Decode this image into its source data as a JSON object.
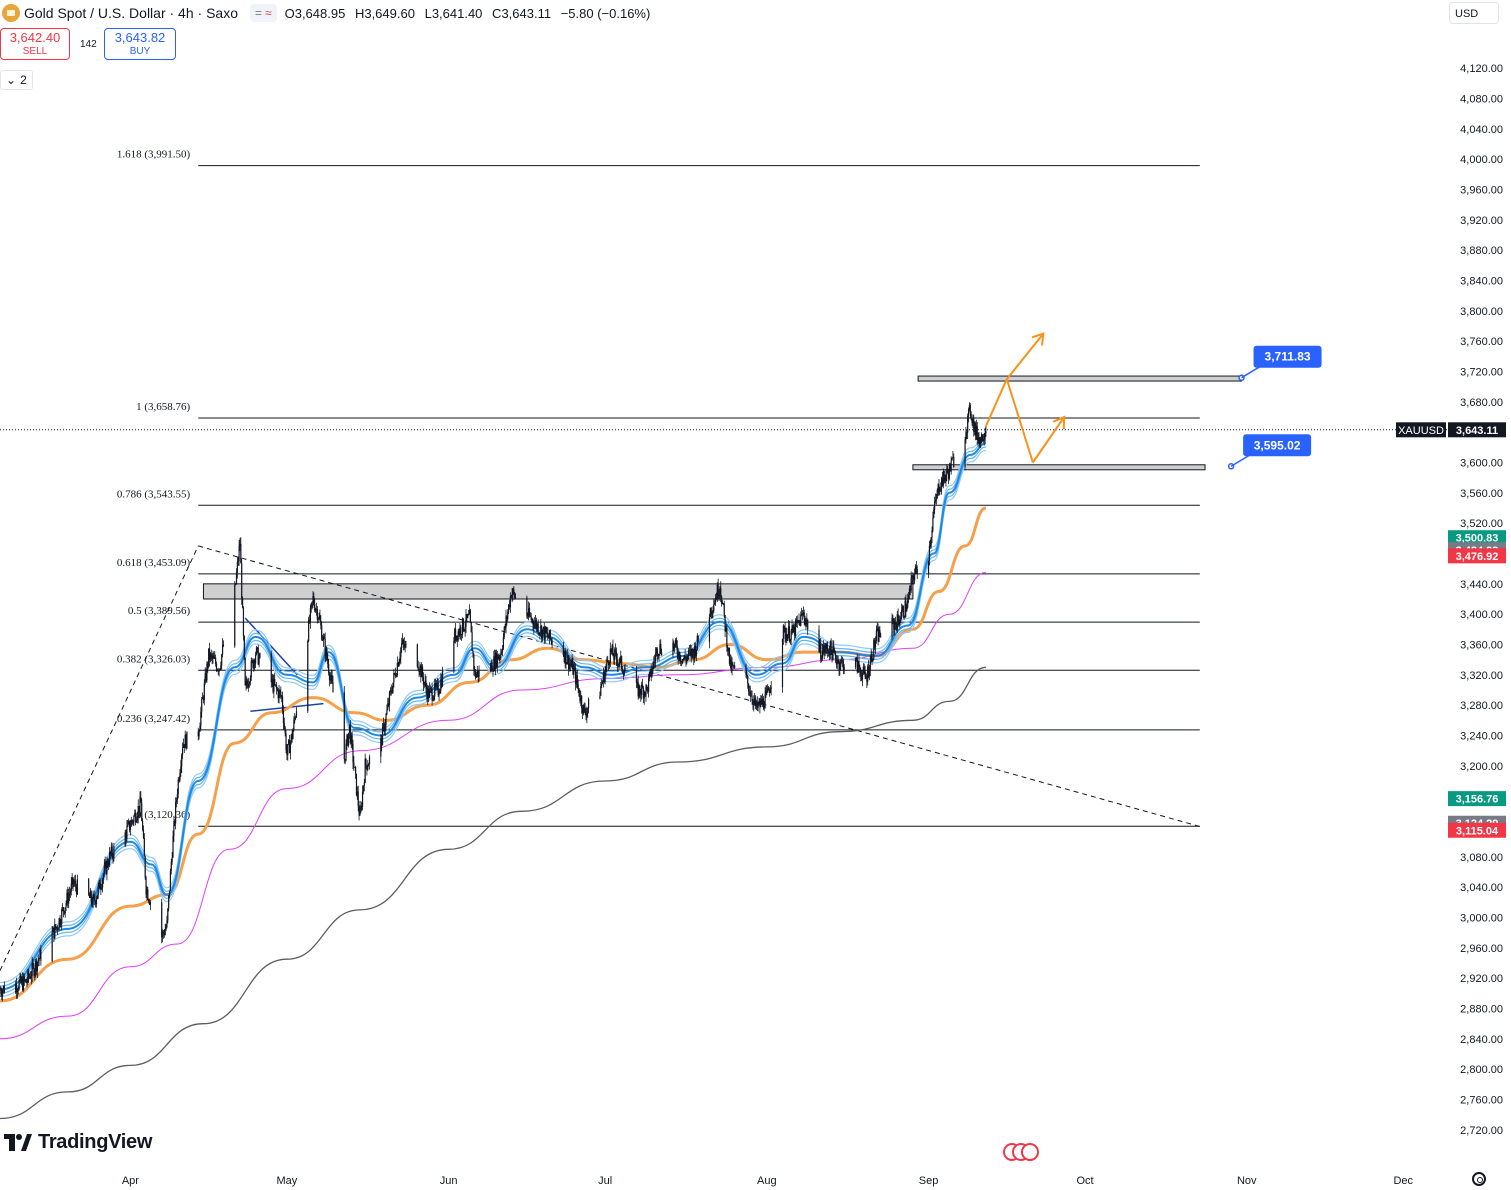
{
  "header": {
    "symbol": "Gold Spot / U.S. Dollar · 4h · Saxo",
    "flag_eq": "=",
    "flag_wave": "≈",
    "open_label": "O",
    "open": "3,648.95",
    "high_label": "H",
    "high": "3,649.60",
    "low_label": "L",
    "low": "3,641.40",
    "close_label": "C",
    "close": "3,643.11",
    "change": "−5.80 (−0.16%)"
  },
  "trade": {
    "sell_price": "3,642.40",
    "sell_label": "SELL",
    "spread": "142",
    "buy_price": "3,643.82",
    "buy_label": "BUY"
  },
  "indicators_toggle": {
    "chevron": "⌄",
    "count": "2"
  },
  "currency": "USD",
  "branding": "TradingView",
  "colors": {
    "up": "#089981",
    "down": "#f23645",
    "blue_label": "#2962ff",
    "orange": "#f7931a",
    "ema_fast": "#1e88e5",
    "ema_fast_light": "#90caf9",
    "ema_mid": "#f5a04a",
    "ema_slow": "#e040fb",
    "ema_200": "#5d5d5d"
  },
  "chart_data": {
    "type": "line",
    "description_fields": {
      "symbol": "XAUUSD",
      "last_price": 3643.11,
      "last_price_label": "3,643.11"
    },
    "ylim": [
      2700,
      4140
    ],
    "y_ticks": [
      2720,
      2760,
      2800,
      2840,
      2880,
      2920,
      2960,
      3000,
      3040,
      3080,
      3120,
      3160,
      3200,
      3240,
      3280,
      3320,
      3360,
      3400,
      3440,
      3480,
      3520,
      3560,
      3600,
      3640,
      3680,
      3720,
      3760,
      3800,
      3840,
      3880,
      3920,
      3960,
      4000,
      4040,
      4080,
      4120
    ],
    "y_tick_labels": [
      "2,720.00",
      "2,760.00",
      "2,800.00",
      "2,840.00",
      "2,880.00",
      "2,920.00",
      "2,960.00",
      "3,000.00",
      "3,040.00",
      "3,080.00",
      "3,120.00",
      "3,160.00",
      "3,200.00",
      "3,240.00",
      "3,280.00",
      "3,320.00",
      "3,360.00",
      "3,400.00",
      "3,440.00",
      "3,480.00",
      "3,520.00",
      "3,560.00",
      "3,600.00",
      "3,640.00",
      "3,680.00",
      "3,720.00",
      "3,760.00",
      "3,800.00",
      "3,840.00",
      "3,880.00",
      "3,920.00",
      "3,960.00",
      "4,000.00",
      "4,040.00",
      "4,080.00",
      "4,120.00"
    ],
    "x_axis_months": [
      "Apr",
      "May",
      "Jun",
      "Jul",
      "Aug",
      "Sep",
      "Oct",
      "Nov",
      "Dec"
    ],
    "x_axis_month_dates": [
      "2025-04-01",
      "2025-05-01",
      "2025-06-01",
      "2025-07-01",
      "2025-08-01",
      "2025-09-01",
      "2025-10-01",
      "2025-11-01",
      "2025-12-01"
    ],
    "x_range": [
      "2025-03-07",
      "2025-12-09"
    ],
    "price_path": [
      [
        "2025-03-07",
        2905
      ],
      [
        "2025-03-12",
        2915
      ],
      [
        "2025-03-18",
        2990
      ],
      [
        "2025-03-21",
        3045
      ],
      [
        "2025-03-25",
        3020
      ],
      [
        "2025-03-28",
        3080
      ],
      [
        "2025-03-31",
        3110
      ],
      [
        "2025-04-03",
        3150
      ],
      [
        "2025-04-04",
        3040
      ],
      [
        "2025-04-07",
        2975
      ],
      [
        "2025-04-08",
        2990
      ],
      [
        "2025-04-09",
        3090
      ],
      [
        "2025-04-10",
        3170
      ],
      [
        "2025-04-11",
        3230
      ],
      [
        "2025-04-14",
        3245
      ],
      [
        "2025-04-16",
        3345
      ],
      [
        "2025-04-18",
        3330
      ],
      [
        "2025-04-21",
        3430
      ],
      [
        "2025-04-22",
        3495
      ],
      [
        "2025-04-23",
        3300
      ],
      [
        "2025-04-25",
        3350
      ],
      [
        "2025-04-28",
        3310
      ],
      [
        "2025-04-30",
        3290
      ],
      [
        "2025-05-01",
        3215
      ],
      [
        "2025-05-02",
        3240
      ],
      [
        "2025-05-06",
        3420
      ],
      [
        "2025-05-07",
        3400
      ],
      [
        "2025-05-09",
        3330
      ],
      [
        "2025-05-12",
        3210
      ],
      [
        "2025-05-13",
        3250
      ],
      [
        "2025-05-15",
        3130
      ],
      [
        "2025-05-16",
        3200
      ],
      [
        "2025-05-19",
        3230
      ],
      [
        "2025-05-21",
        3300
      ],
      [
        "2025-05-23",
        3360
      ],
      [
        "2025-05-26",
        3340
      ],
      [
        "2025-05-28",
        3295
      ],
      [
        "2025-05-30",
        3300
      ],
      [
        "2025-06-02",
        3370
      ],
      [
        "2025-06-05",
        3395
      ],
      [
        "2025-06-06",
        3320
      ],
      [
        "2025-06-09",
        3330
      ],
      [
        "2025-06-11",
        3350
      ],
      [
        "2025-06-13",
        3430
      ],
      [
        "2025-06-16",
        3400
      ],
      [
        "2025-06-18",
        3385
      ],
      [
        "2025-06-20",
        3370
      ],
      [
        "2025-06-23",
        3350
      ],
      [
        "2025-06-25",
        3325
      ],
      [
        "2025-06-27",
        3270
      ],
      [
        "2025-06-30",
        3300
      ],
      [
        "2025-07-02",
        3350
      ],
      [
        "2025-07-04",
        3335
      ],
      [
        "2025-07-07",
        3300
      ],
      [
        "2025-07-09",
        3300
      ],
      [
        "2025-07-11",
        3355
      ],
      [
        "2025-07-14",
        3360
      ],
      [
        "2025-07-16",
        3340
      ],
      [
        "2025-07-18",
        3350
      ],
      [
        "2025-07-22",
        3420
      ],
      [
        "2025-07-23",
        3440
      ],
      [
        "2025-07-25",
        3330
      ],
      [
        "2025-07-28",
        3315
      ],
      [
        "2025-07-30",
        3275
      ],
      [
        "2025-08-01",
        3290
      ],
      [
        "2025-08-04",
        3375
      ],
      [
        "2025-08-06",
        3375
      ],
      [
        "2025-08-08",
        3400
      ],
      [
        "2025-08-11",
        3350
      ],
      [
        "2025-08-13",
        3355
      ],
      [
        "2025-08-15",
        3335
      ],
      [
        "2025-08-18",
        3335
      ],
      [
        "2025-08-20",
        3315
      ],
      [
        "2025-08-22",
        3370
      ],
      [
        "2025-08-26",
        3390
      ],
      [
        "2025-08-28",
        3415
      ],
      [
        "2025-08-29",
        3450
      ],
      [
        "2025-09-01",
        3480
      ],
      [
        "2025-09-02",
        3535
      ],
      [
        "2025-09-03",
        3570
      ],
      [
        "2025-09-05",
        3590
      ],
      [
        "2025-09-08",
        3640
      ],
      [
        "2025-09-09",
        3670
      ],
      [
        "2025-09-10",
        3640
      ],
      [
        "2025-09-11",
        3630
      ],
      [
        "2025-09-12",
        3648
      ]
    ],
    "series": [
      {
        "name": "",
        "role": "ema_fast",
        "color": "#1e88e5",
        "values": [
          [
            "2025-03-07",
            2905
          ],
          [
            "2025-03-20",
            2985
          ],
          [
            "2025-04-01",
            3100
          ],
          [
            "2025-04-05",
            3070
          ],
          [
            "2025-04-08",
            3030
          ],
          [
            "2025-04-14",
            3180
          ],
          [
            "2025-04-21",
            3330
          ],
          [
            "2025-04-25",
            3370
          ],
          [
            "2025-05-01",
            3320
          ],
          [
            "2025-05-06",
            3310
          ],
          [
            "2025-05-09",
            3350
          ],
          [
            "2025-05-14",
            3250
          ],
          [
            "2025-05-19",
            3240
          ],
          [
            "2025-05-26",
            3290
          ],
          [
            "2025-06-02",
            3320
          ],
          [
            "2025-06-06",
            3355
          ],
          [
            "2025-06-10",
            3330
          ],
          [
            "2025-06-16",
            3380
          ],
          [
            "2025-06-20",
            3370
          ],
          [
            "2025-06-27",
            3330
          ],
          [
            "2025-07-02",
            3320
          ],
          [
            "2025-07-09",
            3330
          ],
          [
            "2025-07-16",
            3345
          ],
          [
            "2025-07-23",
            3390
          ],
          [
            "2025-07-30",
            3320
          ],
          [
            "2025-08-04",
            3335
          ],
          [
            "2025-08-08",
            3370
          ],
          [
            "2025-08-15",
            3350
          ],
          [
            "2025-08-22",
            3345
          ],
          [
            "2025-08-28",
            3385
          ],
          [
            "2025-09-02",
            3480
          ],
          [
            "2025-09-05",
            3560
          ],
          [
            "2025-09-09",
            3610
          ],
          [
            "2025-09-12",
            3625
          ]
        ]
      },
      {
        "name": "",
        "role": "ema_mid",
        "color": "#f5a04a",
        "values": [
          [
            "2025-03-07",
            2890
          ],
          [
            "2025-03-20",
            2945
          ],
          [
            "2025-04-01",
            3015
          ],
          [
            "2025-04-08",
            3030
          ],
          [
            "2025-04-14",
            3110
          ],
          [
            "2025-04-21",
            3230
          ],
          [
            "2025-04-28",
            3270
          ],
          [
            "2025-05-06",
            3290
          ],
          [
            "2025-05-14",
            3270
          ],
          [
            "2025-05-20",
            3260
          ],
          [
            "2025-05-28",
            3280
          ],
          [
            "2025-06-05",
            3310
          ],
          [
            "2025-06-13",
            3340
          ],
          [
            "2025-06-20",
            3355
          ],
          [
            "2025-06-27",
            3340
          ],
          [
            "2025-07-04",
            3335
          ],
          [
            "2025-07-11",
            3330
          ],
          [
            "2025-07-18",
            3340
          ],
          [
            "2025-07-25",
            3360
          ],
          [
            "2025-08-01",
            3340
          ],
          [
            "2025-08-08",
            3350
          ],
          [
            "2025-08-15",
            3350
          ],
          [
            "2025-08-22",
            3345
          ],
          [
            "2025-08-29",
            3380
          ],
          [
            "2025-09-03",
            3430
          ],
          [
            "2025-09-08",
            3490
          ],
          [
            "2025-09-12",
            3540
          ]
        ]
      },
      {
        "name": "",
        "role": "ema_slow",
        "color": "#e040fb",
        "values": [
          [
            "2025-03-07",
            2840
          ],
          [
            "2025-03-20",
            2870
          ],
          [
            "2025-04-01",
            2935
          ],
          [
            "2025-04-10",
            2965
          ],
          [
            "2025-04-20",
            3090
          ],
          [
            "2025-05-01",
            3170
          ],
          [
            "2025-05-15",
            3220
          ],
          [
            "2025-06-01",
            3260
          ],
          [
            "2025-06-15",
            3300
          ],
          [
            "2025-07-01",
            3315
          ],
          [
            "2025-07-15",
            3320
          ],
          [
            "2025-08-01",
            3330
          ],
          [
            "2025-08-15",
            3340
          ],
          [
            "2025-08-29",
            3355
          ],
          [
            "2025-09-05",
            3400
          ],
          [
            "2025-09-12",
            3455
          ]
        ]
      },
      {
        "name": "",
        "role": "ema_200",
        "color": "#5d5d5d",
        "values": [
          [
            "2025-03-07",
            2735
          ],
          [
            "2025-03-20",
            2770
          ],
          [
            "2025-04-01",
            2805
          ],
          [
            "2025-04-15",
            2860
          ],
          [
            "2025-05-01",
            2945
          ],
          [
            "2025-05-15",
            3010
          ],
          [
            "2025-06-01",
            3090
          ],
          [
            "2025-06-15",
            3140
          ],
          [
            "2025-07-01",
            3180
          ],
          [
            "2025-07-15",
            3205
          ],
          [
            "2025-08-01",
            3225
          ],
          [
            "2025-08-15",
            3245
          ],
          [
            "2025-08-29",
            3260
          ],
          [
            "2025-09-05",
            3285
          ],
          [
            "2025-09-12",
            3330
          ]
        ]
      }
    ],
    "fibonacci": [
      {
        "ratio": "1.618",
        "value": 3991.5,
        "label": "1.618 (3,991.50)"
      },
      {
        "ratio": "1",
        "value": 3658.76,
        "label": "1 (3,658.76)"
      },
      {
        "ratio": "0.786",
        "value": 3543.55,
        "label": "0.786 (3,543.55)"
      },
      {
        "ratio": "0.618",
        "value": 3453.09,
        "label": "0.618 (3,453.09)"
      },
      {
        "ratio": "0.5",
        "value": 3389.56,
        "label": "0.5 (3,389.56)"
      },
      {
        "ratio": "0.382",
        "value": 3326.03,
        "label": "0.382 (3,326.03)"
      },
      {
        "ratio": "0.236",
        "value": 3247.42,
        "label": "0.236 (3,247.42)"
      },
      {
        "ratio": "0",
        "value": 3120.36,
        "label": "0 (3,120.36)"
      }
    ],
    "fib_range": [
      "2025-04-14",
      "2025-10-23"
    ],
    "zones": [
      {
        "from": "2025-04-15",
        "to": "2025-08-29",
        "low": 3420,
        "high": 3440
      },
      {
        "from": "2025-08-29",
        "to": "2025-10-24",
        "low": 3591,
        "high": 3597
      },
      {
        "from": "2025-08-30",
        "to": "2025-10-31",
        "low": 3708,
        "high": 3714
      }
    ],
    "trendlines": [
      {
        "from": [
          "2025-03-07",
          2930
        ],
        "to": [
          "2025-04-14",
          3490
        ],
        "dashed": true
      },
      {
        "from": [
          "2025-04-14",
          3490
        ],
        "to": [
          "2025-10-23",
          3120
        ],
        "dashed": true
      }
    ],
    "triangle_lines": [
      {
        "from": [
          "2025-04-23",
          3395
        ],
        "to": [
          "2025-05-03",
          3320
        ]
      },
      {
        "from": [
          "2025-04-24",
          3272
        ],
        "to": [
          "2025-05-08",
          3282
        ]
      }
    ],
    "projection": [
      {
        "from": [
          "2025-09-12",
          3648
        ],
        "to": [
          "2025-09-16",
          3710
        ]
      },
      {
        "from": [
          "2025-09-16",
          3710
        ],
        "to": [
          "2025-09-23",
          3770
        ]
      },
      {
        "from": [
          "2025-09-16",
          3710
        ],
        "to": [
          "2025-09-21",
          3600
        ]
      },
      {
        "from": [
          "2025-09-21",
          3600
        ],
        "to": [
          "2025-09-27",
          3660
        ]
      }
    ],
    "price_labels": [
      {
        "value": 3711.83,
        "text": "3,711.83",
        "date": "2025-10-31",
        "color": "#2962ff"
      },
      {
        "value": 3595.02,
        "text": "3,595.02",
        "date": "2025-10-29",
        "color": "#2962ff"
      }
    ],
    "axis_badges": [
      {
        "value": 3643.11,
        "text": "3,643.11",
        "symbol": "XAUUSD",
        "color": "#131722"
      },
      {
        "value": 3500.83,
        "text": "3,500.83",
        "color": "#089981"
      },
      {
        "value": 3484.93,
        "text": "3,484.93",
        "color": "#787b86"
      },
      {
        "value": 3476.92,
        "text": "3,476.92",
        "color": "#f23645"
      },
      {
        "value": 3156.76,
        "text": "3,156.76",
        "color": "#089981"
      },
      {
        "value": 3124.29,
        "text": "3,124.29",
        "color": "#787b86"
      },
      {
        "value": 3115.04,
        "text": "3,115.04",
        "color": "#f23645"
      }
    ]
  }
}
